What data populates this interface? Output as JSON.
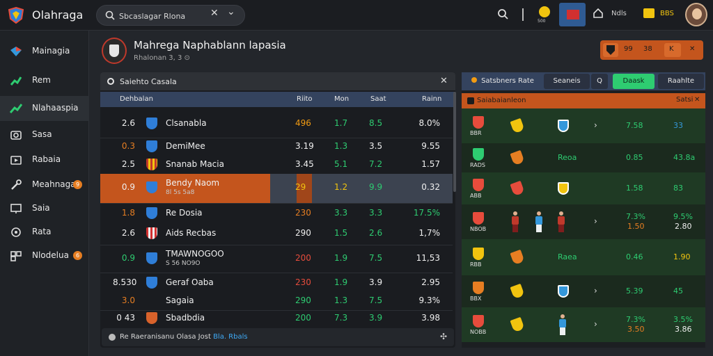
{
  "app": {
    "title": "Olahraga"
  },
  "search": {
    "value": "Sbcaslagar Rlona",
    "placeholder": ""
  },
  "topbar": {
    "icons": [
      "search-icon",
      "coin-icon",
      "flag-icon",
      "house-icon",
      "crown-icon",
      "avatar-icon"
    ],
    "house_label": "Ndls",
    "crown_label": "BBS",
    "coin_label": "500"
  },
  "sidebar": {
    "items": [
      {
        "label": "Mainagia",
        "icon": "diamond-icon",
        "badge": ""
      },
      {
        "label": "Rem",
        "icon": "chart-icon",
        "badge": ""
      },
      {
        "label": "Nlahaaspia",
        "icon": "trend-icon",
        "badge": ""
      },
      {
        "label": "Sasa",
        "icon": "camera-icon",
        "badge": ""
      },
      {
        "label": "Rabaia",
        "icon": "video-icon",
        "badge": ""
      },
      {
        "label": "Meahnaga",
        "icon": "wrench-icon",
        "badge": "9"
      },
      {
        "label": "Saia",
        "icon": "monitor-icon",
        "badge": ""
      },
      {
        "label": "Rata",
        "icon": "target-icon",
        "badge": ""
      },
      {
        "label": "Nlodelua",
        "icon": "grid-icon",
        "badge": "6"
      }
    ]
  },
  "match": {
    "title": "Mahrega Naphablann lapasia",
    "subtitle": "Rhalonan 3, 3 ⊙"
  },
  "head_right": {
    "a": "99",
    "b": "38",
    "c": "K"
  },
  "left_panel": {
    "title": "Saiehto Casala",
    "columns": [
      "Dehbalan",
      "Riito",
      "Mon",
      "Saat",
      "Rainn"
    ],
    "rows": [
      {
        "pos": "2.6",
        "pos_color": "#f0f0f0",
        "team": "Clsanabla",
        "sub": "",
        "badge": "blue",
        "v1": "496",
        "v1c": "#f39c12",
        "v2": "1.7",
        "v2c": "#2ecc71",
        "v3": "8.5",
        "v3c": "#2ecc71",
        "v4": "8.0%"
      },
      {
        "pos": "0.3",
        "pos_color": "#e67e22",
        "team": "DemiMee",
        "sub": "",
        "badge": "blue",
        "v1": "3.19",
        "v1c": "#f0f0f0",
        "v2": "1.3",
        "v2c": "#2ecc71",
        "v3": "3.5",
        "v3c": "#f0f0f0",
        "v4": "9.55"
      },
      {
        "pos": "2.5",
        "pos_color": "#f0f0f0",
        "team": "Snanab Macia",
        "sub": "",
        "badge": "gold",
        "v1": "3.45",
        "v1c": "#f0f0f0",
        "v2": "5.1",
        "v2c": "#2ecc71",
        "v3": "7.2",
        "v3c": "#2ecc71",
        "v4": "1.57"
      },
      {
        "pos": "0.9",
        "pos_color": "#f0f0f0",
        "team": "Bendy Naom",
        "sub": "8l 5s 5a8",
        "badge": "blue",
        "v1": "29",
        "v1c": "#f1c40f",
        "v2": "1.2",
        "v2c": "#f1c40f",
        "v3": "9.9",
        "v3c": "#2ecc71",
        "v4": "0.32"
      },
      {
        "pos": "1.8",
        "pos_color": "#e67e22",
        "team": "Re Dosia",
        "sub": "",
        "badge": "blue",
        "v1": "230",
        "v1c": "#e67e22",
        "v2": "3.3",
        "v2c": "#2ecc71",
        "v3": "3.3",
        "v3c": "#2ecc71",
        "v4": "17.5%",
        "v4c": "#2ecc71"
      },
      {
        "pos": "2.6",
        "pos_color": "#f0f0f0",
        "team": "Aids Recbas",
        "sub": "",
        "badge": "stripe",
        "v1": "290",
        "v1c": "#f0f0f0",
        "v2": "1.5",
        "v2c": "#2ecc71",
        "v3": "2.6",
        "v3c": "#2ecc71",
        "v4": "1,7%"
      },
      {
        "pos": "0.9",
        "pos_color": "#2ecc71",
        "team": "TMAWNOGOO",
        "sub": "S 56 NO9O",
        "badge": "blue",
        "v1": "200",
        "v1c": "#e74c3c",
        "v2": "1.9",
        "v2c": "#2ecc71",
        "v3": "7.5",
        "v3c": "#2ecc71",
        "v4": "11,53"
      },
      {
        "pos": "8.530",
        "pos_color": "#f0f0f0",
        "team": "Geraf Oaba",
        "sub": "",
        "badge": "blue",
        "v1": "230",
        "v1c": "#e74c3c",
        "v2": "1.9",
        "v2c": "#2ecc71",
        "v3": "3.9",
        "v3c": "#f0f0f0",
        "v4": "2.95"
      },
      {
        "pos": "3.0",
        "pos_color": "#e67e22",
        "team": "Sagaia",
        "sub": "",
        "badge": "none",
        "v1": "290",
        "v1c": "#2ecc71",
        "v2": "1.3",
        "v2c": "#2ecc71",
        "v3": "7.5",
        "v3c": "#2ecc71",
        "v4": "9.3%"
      },
      {
        "pos": "0 43",
        "pos_color": "#f0f0f0",
        "team": "Sbadbdia",
        "sub": "",
        "badge": "orange",
        "v1": "200",
        "v1c": "#2ecc71",
        "v2": "7.3",
        "v2c": "#2ecc71",
        "v3": "3.9",
        "v3c": "#2ecc71",
        "v4": "3.98"
      }
    ],
    "footer": "Re Raeranisanu Olasa Jost ",
    "footer_link": "Bla. Rbals"
  },
  "right_panel": {
    "tabs": [
      "Satsbners Rate",
      "Seaneis",
      "Q",
      "Daask",
      "Raahlte"
    ],
    "sub_title": "Saiabaianleon",
    "sub_right": "Satsi",
    "rows": [
      {
        "label": "BBR",
        "kind": "arrow",
        "v1": "7.58",
        "v1c": "#2ecc71",
        "v2": "33",
        "v2c": "#3498db",
        "v1b": "",
        "v2b": ""
      },
      {
        "label": "RADS",
        "kind": "text",
        "text": "Reoa",
        "v1": "0.85",
        "v1c": "#2ecc71",
        "v2": "43.8a",
        "v2c": "#2ecc71",
        "v1b": "",
        "v2b": ""
      },
      {
        "label": "ABB",
        "kind": "none",
        "v1": "1.58",
        "v1c": "#2ecc71",
        "v2": "83",
        "v2c": "#2ecc71",
        "v1b": "",
        "v2b": ""
      },
      {
        "label": "NBOB",
        "kind": "players",
        "v1": "7.3%",
        "v1c": "#2ecc71",
        "v2": "9.5%",
        "v2c": "#2ecc71",
        "v1b": "1.50",
        "v2b": "2.80"
      },
      {
        "label": "RBB",
        "kind": "text",
        "text": "Raea",
        "v1": "0.46",
        "v1c": "#2ecc71",
        "v2": "1.90",
        "v2c": "#f1c40f",
        "v1b": "",
        "v2b": ""
      },
      {
        "label": "BBX",
        "kind": "arrow",
        "v1": "5.39",
        "v1c": "#2ecc71",
        "v2": "45",
        "v2c": "#2ecc71",
        "v1b": "",
        "v2b": ""
      },
      {
        "label": "NOBB",
        "kind": "player1",
        "v1": "7.3%",
        "v1c": "#2ecc71",
        "v2": "3.5%",
        "v2c": "#2ecc71",
        "v1b": "3.50",
        "v2b": "3.86"
      }
    ]
  }
}
